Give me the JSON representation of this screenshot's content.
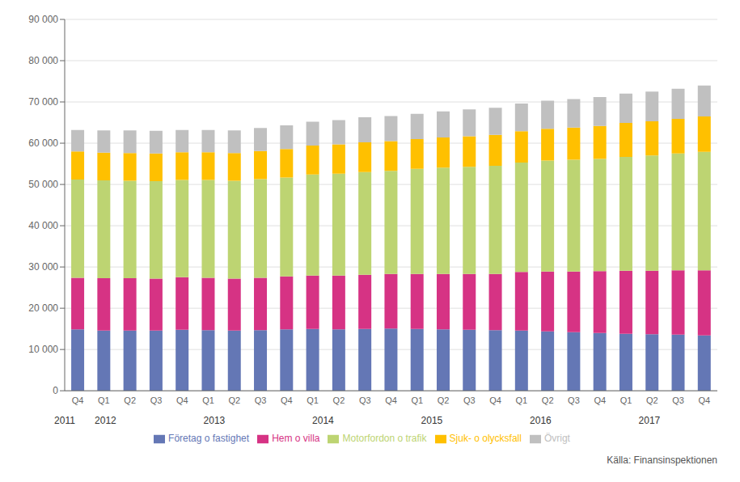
{
  "chart_data": {
    "type": "bar",
    "stacked": true,
    "categories": [
      "Q4",
      "Q1",
      "Q2",
      "Q3",
      "Q4",
      "Q1",
      "Q2",
      "Q3",
      "Q4",
      "Q1",
      "Q2",
      "Q3",
      "Q4",
      "Q1",
      "Q2",
      "Q3",
      "Q4",
      "Q1",
      "Q2",
      "Q3",
      "Q4",
      "Q1",
      "Q2",
      "Q3",
      "Q4"
    ],
    "series": [
      {
        "name": "Företag o fastighet",
        "color": "#6477b5",
        "values": [
          14900,
          14600,
          14600,
          14600,
          14800,
          14700,
          14600,
          14700,
          14900,
          15000,
          14900,
          15000,
          15100,
          15000,
          14900,
          14800,
          14700,
          14600,
          14400,
          14200,
          14000,
          13800,
          13700,
          13600,
          13400
        ]
      },
      {
        "name": "Hem o villa",
        "color": "#d63384",
        "values": [
          12500,
          12700,
          12700,
          12600,
          12700,
          12700,
          12600,
          12700,
          12800,
          12900,
          13000,
          13100,
          13200,
          13300,
          13400,
          13500,
          13600,
          14200,
          14500,
          14700,
          15000,
          15300,
          15400,
          15600,
          15800
        ]
      },
      {
        "name": "Motorfordon o trafik",
        "color": "#bdd472",
        "values": [
          23800,
          23700,
          23600,
          23600,
          23600,
          23700,
          23700,
          23900,
          24000,
          24500,
          24700,
          24900,
          25000,
          25500,
          25800,
          26000,
          26200,
          26500,
          26900,
          27100,
          27200,
          27600,
          27900,
          28300,
          28700
        ]
      },
      {
        "name": "Sjuk- o olycksfall",
        "color": "#ffc000",
        "values": [
          6800,
          6700,
          6700,
          6700,
          6700,
          6700,
          6700,
          6800,
          6900,
          7000,
          7100,
          7200,
          7200,
          7200,
          7300,
          7400,
          7500,
          7600,
          7700,
          7800,
          8000,
          8200,
          8300,
          8400,
          8600
        ]
      },
      {
        "name": "Övrigt",
        "color": "#c0c0c0",
        "values": [
          5200,
          5400,
          5500,
          5500,
          5400,
          5400,
          5500,
          5600,
          5700,
          5800,
          5900,
          6100,
          6100,
          6100,
          6300,
          6500,
          6600,
          6700,
          6800,
          6900,
          7000,
          7100,
          7200,
          7300,
          7500
        ]
      }
    ],
    "ylim": [
      0,
      90000
    ],
    "yticks": [
      0,
      {
        "value": 10000,
        "label": "10 000"
      },
      {
        "value": 20000,
        "label": "20 000"
      },
      {
        "value": 30000,
        "label": "30 000"
      },
      {
        "value": 40000,
        "label": "40 000"
      },
      {
        "value": 50000,
        "label": "50 000"
      },
      {
        "value": 60000,
        "label": "60 000"
      },
      {
        "value": 70000,
        "label": "70 000"
      },
      {
        "value": 80000,
        "label": "80 000"
      },
      {
        "value": 90000,
        "label": "90 000"
      }
    ],
    "grid": true,
    "legend": "bottom",
    "annotations": [
      {
        "text": "2011",
        "x": 0
      },
      {
        "text": "2012",
        "x": 1.5
      },
      {
        "text": "2013",
        "x": 5.5
      },
      {
        "text": "2014",
        "x": 9.5
      },
      {
        "text": "2015",
        "x": 13.5
      },
      {
        "text": "2016",
        "x": 17.5
      },
      {
        "text": "2017",
        "x": 21.5
      }
    ],
    "source": "Källa: Finansinspektionen"
  }
}
